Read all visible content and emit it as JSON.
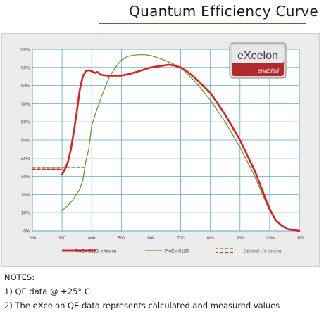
{
  "header": {
    "title": "Quantum Efficiency Curve"
  },
  "badge": {
    "brand": "eXcelon",
    "sub": "enabled"
  },
  "notes": {
    "heading": "NOTES:",
    "items": [
      "1)  QE data @ +25° C",
      "2)  The eXcelon QE data represents calculated and measured values"
    ]
  },
  "chart_data": {
    "type": "line",
    "title": "",
    "xlabel": "",
    "ylabel": "",
    "xlim": [
      200,
      1100
    ],
    "ylim": [
      0,
      100
    ],
    "grid": true,
    "legend_position": "bottom",
    "x_ticks": [
      "200",
      "300",
      "400",
      "500",
      "600",
      "700",
      "800",
      "900",
      "1000",
      "1100"
    ],
    "y_ticks": [
      "0%",
      "10%",
      "20%",
      "30%",
      "40%",
      "50%",
      "60%",
      "70%",
      "80%",
      "90%",
      "100%"
    ],
    "series": [
      {
        "name": "ProEM:512B_eXcelon",
        "color": "#e02020",
        "points": [
          [
            300,
            31
          ],
          [
            310,
            34
          ],
          [
            320,
            38
          ],
          [
            330,
            45
          ],
          [
            340,
            55
          ],
          [
            350,
            66
          ],
          [
            360,
            78
          ],
          [
            370,
            85
          ],
          [
            380,
            88
          ],
          [
            390,
            88.5
          ],
          [
            400,
            88
          ],
          [
            410,
            87
          ],
          [
            420,
            87.5
          ],
          [
            430,
            86
          ],
          [
            450,
            85.5
          ],
          [
            470,
            85.5
          ],
          [
            500,
            85.5
          ],
          [
            530,
            86.5
          ],
          [
            560,
            88
          ],
          [
            600,
            90
          ],
          [
            640,
            91
          ],
          [
            660,
            91.5
          ],
          [
            680,
            91
          ],
          [
            700,
            90
          ],
          [
            720,
            88
          ],
          [
            750,
            84
          ],
          [
            800,
            76
          ],
          [
            850,
            64
          ],
          [
            900,
            50
          ],
          [
            950,
            33
          ],
          [
            1000,
            12
          ],
          [
            1020,
            6
          ],
          [
            1040,
            3
          ],
          [
            1060,
            1
          ],
          [
            1080,
            0.5
          ],
          [
            1100,
            0
          ]
        ]
      },
      {
        "name": "ProEM:512B",
        "color": "#6b8e23",
        "points": [
          [
            300,
            11
          ],
          [
            320,
            14
          ],
          [
            340,
            18
          ],
          [
            360,
            23
          ],
          [
            370,
            28
          ],
          [
            380,
            38
          ],
          [
            390,
            45
          ],
          [
            400,
            58
          ],
          [
            420,
            68
          ],
          [
            440,
            77
          ],
          [
            460,
            85
          ],
          [
            480,
            90
          ],
          [
            500,
            94
          ],
          [
            520,
            96
          ],
          [
            540,
            96.8
          ],
          [
            560,
            97
          ],
          [
            580,
            97
          ],
          [
            600,
            96.5
          ],
          [
            630,
            95
          ],
          [
            660,
            93
          ],
          [
            700,
            90
          ],
          [
            750,
            82
          ],
          [
            800,
            72
          ],
          [
            850,
            60
          ],
          [
            900,
            46
          ],
          [
            950,
            30
          ],
          [
            1000,
            11
          ],
          [
            1020,
            6
          ],
          [
            1040,
            3
          ],
          [
            1060,
            1
          ],
          [
            1080,
            0.5
          ],
          [
            1100,
            0
          ]
        ]
      },
      {
        "name": "Optional UV coating",
        "color": "#e02020",
        "dashed": true,
        "points": [
          [
            200,
            34
          ],
          [
            300,
            34
          ]
        ]
      },
      {
        "name": "",
        "color": "#7ab06a",
        "dashed": true,
        "points": [
          [
            200,
            35
          ],
          [
            300,
            35
          ],
          [
            380,
            35
          ]
        ]
      }
    ]
  }
}
